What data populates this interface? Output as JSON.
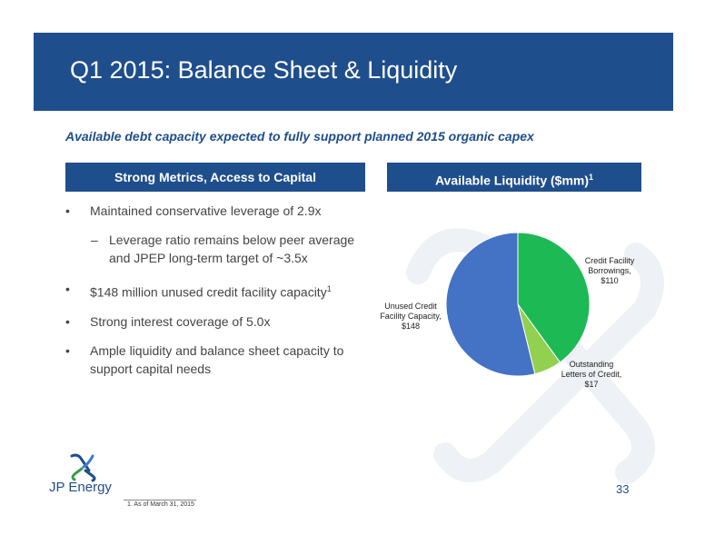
{
  "slide": {
    "title": "Q1 2015: Balance Sheet & Liquidity",
    "subtitle": "Available debt capacity expected to fully support planned 2015 organic capex",
    "page_number": "33",
    "logo_text": "JP Energy",
    "footnote": "1.   As of March 31, 2015"
  },
  "left_panel": {
    "header": "Strong Metrics, Access to Capital",
    "bullets": [
      {
        "text": "Maintained conservative leverage of 2.9x"
      },
      {
        "text": "Leverage ratio remains below peer average and JPEP long-term target of ~3.5x",
        "sub": true
      },
      {
        "text": "$148 million unused credit facility capacity",
        "sup": "1"
      },
      {
        "text": "Strong interest coverage of 5.0x"
      },
      {
        "text": "Ample liquidity and balance sheet capacity to support capital needs"
      }
    ],
    "bullet_glyph": "•",
    "sub_glyph": "‒"
  },
  "right_panel": {
    "header": "Available Liquidity ($mm)",
    "header_sup": "1"
  },
  "chart_data": {
    "type": "pie",
    "title": "Available Liquidity ($mm)",
    "slices": [
      {
        "label_lines": [
          "Credit Facility",
          "Borrowings,",
          "$110"
        ],
        "value": 110,
        "color": "#1db954"
      },
      {
        "label_lines": [
          "Outstanding",
          "Letters of Credit,",
          "$17"
        ],
        "value": 17,
        "color": "#92d050"
      },
      {
        "label_lines": [
          "Unused Credit",
          "Facility Capacity,",
          "$148"
        ],
        "value": 148,
        "color": "#4472c4"
      }
    ]
  },
  "colors": {
    "brand": "#1f4e8c",
    "watermark": "#eef1f6"
  }
}
